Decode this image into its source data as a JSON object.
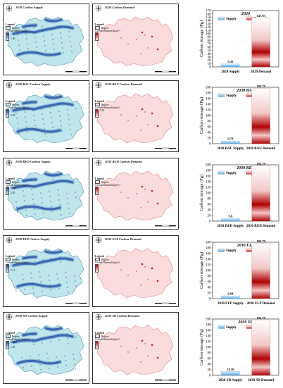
{
  "colors": {
    "supply_region": "#bfe6ea",
    "supply_high": "#1f3f9a",
    "supply_mid": "#4a86c8",
    "demand_region": "#fadcdc",
    "demand_border": "#d98b8b",
    "demand_high": "#b40000",
    "supply_bar_top": "#e9f5ff",
    "supply_bar_bottom": "#4fa6ea",
    "demand_bar_top": "#ffffff",
    "demand_bar_mid": "#f3c7c7",
    "demand_bar_dark": "#b00000"
  },
  "legend_text": {
    "title": "Legend",
    "region": "Region",
    "supply_unit": "Carbon Supply (kg/m²)",
    "demand_unit": "Carbon Demand (kg/m²)"
  },
  "rows": [
    {
      "supply_title": "2020 Carbon Supply",
      "demand_title": "2020 Carbon Demand",
      "supply_max": "",
      "supply_min": "1.00",
      "demand_max": "",
      "demand_min": ""
    },
    {
      "supply_title": "2030 BAU Carbon Supply",
      "demand_title": "2030 BAU Carbon Demand",
      "supply_max": "",
      "supply_min": "2.04",
      "demand_max": "7.26",
      "demand_min": ""
    },
    {
      "supply_title": "2030 RED Carbon Supply",
      "demand_title": "2030 RED Carbon Demand",
      "supply_max": "24.35",
      "supply_min": "2.00",
      "demand_max": "",
      "demand_min": ""
    },
    {
      "supply_title": "2030 ELP Carbon Supply",
      "demand_title": "2030 ELP Carbon Demand",
      "supply_max": "",
      "supply_min": "2.11",
      "demand_max": "",
      "demand_min": ""
    },
    {
      "supply_title": "2030 SD Carbon Supply",
      "demand_title": "2030 SD Carbon Demand",
      "supply_max": "25.61",
      "supply_min": "1.00",
      "demand_max": "",
      "demand_min": ""
    }
  ],
  "chart_data": [
    {
      "type": "bar",
      "title": "2020",
      "ylabel": "Carbon storage (Pg)",
      "ylim": [
        0,
        170
      ],
      "yticks": [
        0,
        10,
        20,
        30,
        40,
        50,
        60,
        70,
        80,
        90,
        100,
        110,
        120,
        130,
        140,
        150,
        160,
        170
      ],
      "categories": [
        "2020 Supply",
        "2020 Demand"
      ],
      "series": [
        {
          "name": "Supply",
          "values": [
            9.26,
            null
          ]
        },
        {
          "name": "Demand",
          "values": [
            null,
            147.93
          ]
        }
      ],
      "data_labels": [
        "9.26",
        "147.93"
      ],
      "legend": [
        "Supply",
        "Demand"
      ],
      "legend_position": "top"
    },
    {
      "type": "bar",
      "title": "2030 BAU",
      "ylabel": "Carbon storage (Pg)",
      "ylim": [
        0,
        200
      ],
      "yticks": [
        0,
        20,
        40,
        60,
        80,
        100,
        120,
        140,
        160,
        180,
        200
      ],
      "categories": [
        "2030 BAU Supply",
        "2030 BAU Demand"
      ],
      "series": [
        {
          "name": "Supply",
          "values": [
            9.78,
            null
          ]
        },
        {
          "name": "Demand",
          "values": [
            null,
            195.79
          ]
        }
      ],
      "data_labels": [
        "9.78",
        "195.79"
      ],
      "legend": [
        "Supply",
        "Demand"
      ],
      "legend_position": "top"
    },
    {
      "type": "bar",
      "title": "2030 RED",
      "ylabel": "Carbon storage (Pg)",
      "ylim": [
        0,
        200
      ],
      "yticks": [
        0,
        20,
        40,
        60,
        80,
        100,
        120,
        140,
        160,
        180,
        200
      ],
      "categories": [
        "2030 RED Supply",
        "2030 RED Demand"
      ],
      "series": [
        {
          "name": "Supply",
          "values": [
            9.8,
            null
          ]
        },
        {
          "name": "Demand",
          "values": [
            null,
            195.79
          ]
        }
      ],
      "data_labels": [
        "9.8",
        "195.79"
      ],
      "legend": [
        "Supply",
        "Demand"
      ],
      "legend_position": "top"
    },
    {
      "type": "bar",
      "title": "2030 ELP",
      "ylabel": "Carbon storage (Pg)",
      "ylim": [
        0,
        200
      ],
      "yticks": [
        0,
        20,
        40,
        60,
        80,
        100,
        120,
        140,
        160,
        180,
        200
      ],
      "categories": [
        "2030 ELP Supply",
        "2030 ELP Demand"
      ],
      "series": [
        {
          "name": "Supply",
          "values": [
            9.84,
            null
          ]
        },
        {
          "name": "Demand",
          "values": [
            null,
            195.79
          ]
        }
      ],
      "data_labels": [
        "9.84",
        "195.79"
      ],
      "legend": [
        "Supply",
        "Demand"
      ],
      "legend_position": "top"
    },
    {
      "type": "bar",
      "title": "2030 SD",
      "ylabel": "Carbon storage (Pg)",
      "ylim": [
        0,
        200
      ],
      "yticks": [
        0,
        20,
        40,
        60,
        80,
        100,
        120,
        140,
        160,
        180,
        200
      ],
      "categories": [
        "2030 SD Supply",
        "2030 SD Demand"
      ],
      "series": [
        {
          "name": "Supply",
          "values": [
            14.26,
            null
          ]
        },
        {
          "name": "Demand",
          "values": [
            null,
            195.79
          ]
        }
      ],
      "data_labels": [
        "14.26",
        "195.79"
      ],
      "legend": [
        "Supply",
        "Demand"
      ],
      "legend_position": "top"
    }
  ]
}
